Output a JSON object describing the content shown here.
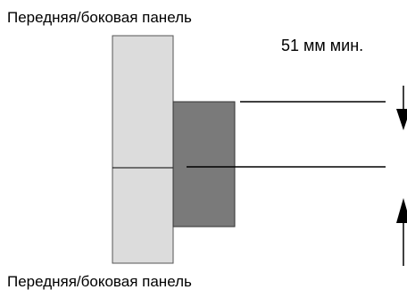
{
  "labels": {
    "top_panel": "Передняя/боковая панель",
    "bottom_panel": "Передняя/боковая панель",
    "clearance": "51 мм мин."
  },
  "colors": {
    "panel_fill": "#dcdcdc",
    "block_fill": "#7a7a7a",
    "line": "#000000"
  }
}
